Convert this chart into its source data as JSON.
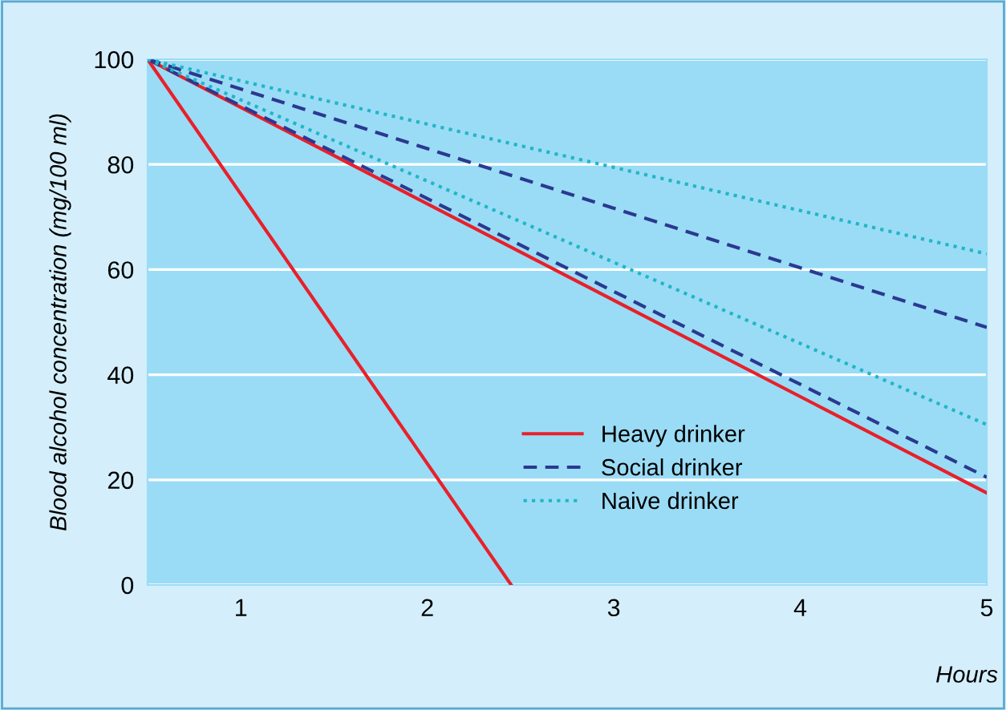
{
  "chart_data": {
    "type": "line",
    "xlabel": "Hours",
    "ylabel": "Blood alcohol concentration (mg/100 ml)",
    "xlim": [
      0.5,
      5
    ],
    "ylim": [
      0,
      100
    ],
    "xticks": [
      1,
      2,
      3,
      4,
      5
    ],
    "yticks": [
      0,
      20,
      40,
      60,
      80,
      100
    ],
    "grid": "y",
    "legend": "bottom",
    "marker": "none",
    "series": [
      {
        "name": "Heavy drinker",
        "color": "#e8202a",
        "line_style": "solid",
        "x": [
          0.5,
          2.45
        ],
        "values": [
          100,
          0
        ]
      },
      {
        "name": "Social drinker",
        "color": "#2b3990",
        "line_style": "dashed",
        "x": [
          0.5,
          5
        ],
        "values": [
          100,
          49
        ]
      },
      {
        "name": "Naive drinker",
        "color": "#22b5c8",
        "line_style": "dotted",
        "x": [
          0.5,
          5
        ],
        "values": [
          100,
          63
        ]
      },
      {
        "color": "#e8202a",
        "line_style": "solid",
        "x": [
          0.5,
          5
        ],
        "values": [
          100,
          17.5
        ]
      },
      {
        "color": "#2b3990",
        "line_style": "dashed",
        "x": [
          0.5,
          5
        ],
        "values": [
          100,
          20.5
        ]
      },
      {
        "color": "#22b5c8",
        "line_style": "dotted",
        "x": [
          0.5,
          5
        ],
        "values": [
          100,
          30.5
        ]
      }
    ]
  }
}
